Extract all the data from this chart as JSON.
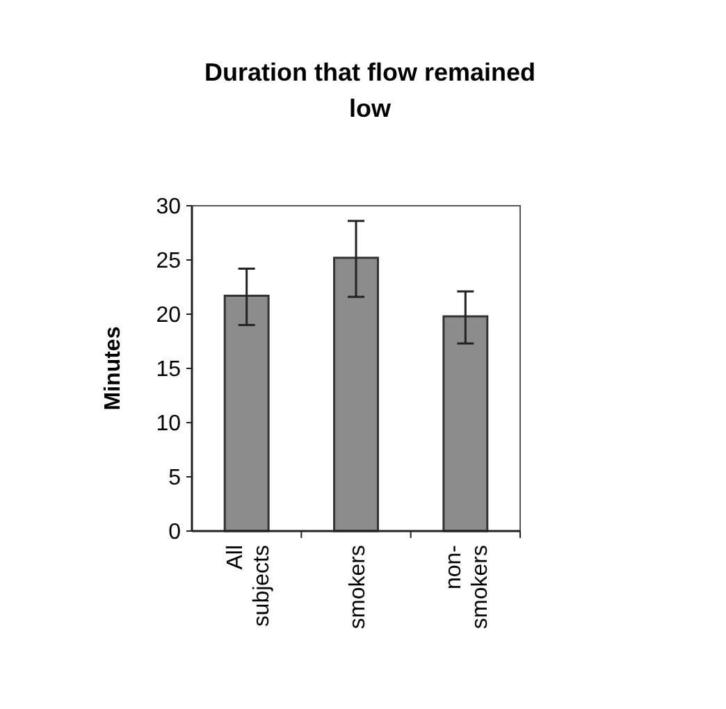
{
  "chart_data": {
    "type": "bar",
    "title": "Duration that flow remained low",
    "ylabel": "Minutes",
    "categories": [
      "All subjects",
      "smokers",
      "non-smokers"
    ],
    "values": [
      21.7,
      25.2,
      19.8
    ],
    "color": "#8c8c8c",
    "errors": [
      [
        19,
        24.2
      ],
      [
        21.6,
        28.6
      ],
      [
        17.3,
        22.1
      ]
    ],
    "ylim": [
      0,
      30
    ],
    "yticks": [
      0,
      5,
      10,
      15,
      20,
      25,
      30
    ],
    "grid": false
  }
}
